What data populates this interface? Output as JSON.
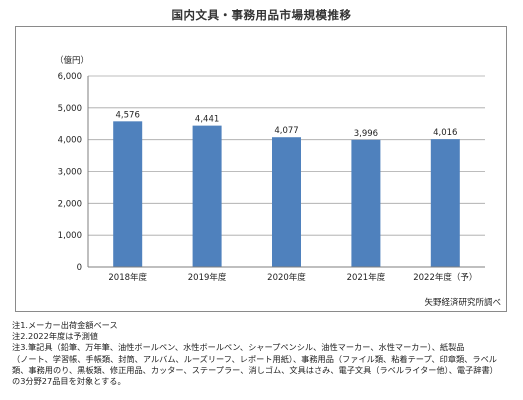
{
  "chart_data": {
    "type": "bar",
    "title": "国内文具・事務用品市場規模推移",
    "ylabel": "（億円）",
    "categories": [
      "2018年度",
      "2019年度",
      "2020年度",
      "2021年度",
      "2022年度（予）"
    ],
    "values": [
      4576,
      4441,
      4077,
      3996,
      4016
    ],
    "value_labels": [
      "4,576",
      "4,441",
      "4,077",
      "3,996",
      "4,016"
    ],
    "ylim": [
      0,
      6000
    ],
    "yticks": [
      0,
      1000,
      2000,
      3000,
      4000,
      5000,
      6000
    ],
    "ytick_labels": [
      "0",
      "1,000",
      "2,000",
      "3,000",
      "4,000",
      "5,000",
      "6,000"
    ],
    "bar_color": "#4f81bd",
    "grid": true,
    "source": "矢野経済研究所調べ"
  },
  "notes": [
    "注1.メーカー出荷金額ベース",
    "注2.2022年度は予測値",
    "注3.筆記具（鉛筆、万年筆、油性ボールペン、水性ボールペン、シャープペンシル、油性マーカー、水性マーカー）、紙製品",
    "（ノート、学習帳、手帳類、封筒、アルバム、ルーズリーフ、レポート用紙）、事務用品（ファイル類、粘着テープ、印章類、ラベル",
    "類、事務用のり、黒板類、修正用品、カッター、ステープラー、消しゴム、文具はさみ、電子文具（ラベルライター他）、電子辞書）",
    "の3分野27品目を対象とする。"
  ]
}
